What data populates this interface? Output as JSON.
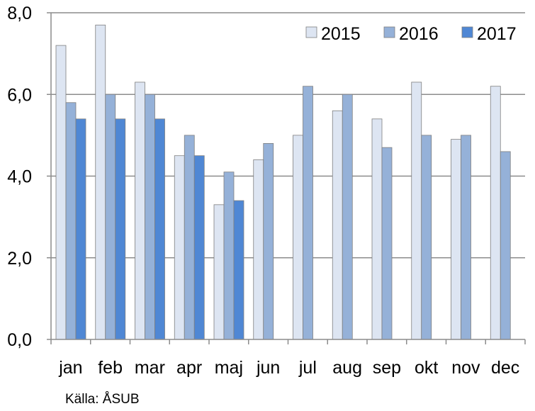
{
  "chart_data": {
    "type": "bar",
    "categories": [
      "jan",
      "feb",
      "mar",
      "apr",
      "maj",
      "jun",
      "jul",
      "aug",
      "sep",
      "okt",
      "nov",
      "dec"
    ],
    "series": [
      {
        "name": "2015",
        "color": "#dde5f2",
        "values": [
          7.2,
          7.7,
          6.3,
          4.5,
          3.3,
          4.4,
          5.0,
          5.6,
          5.4,
          6.3,
          4.9,
          6.2
        ]
      },
      {
        "name": "2016",
        "color": "#95b1d8",
        "values": [
          5.8,
          6.0,
          6.0,
          5.0,
          4.1,
          4.8,
          6.2,
          6.0,
          4.7,
          5.0,
          5.0,
          4.6
        ]
      },
      {
        "name": "2017",
        "color": "#4f87d4",
        "values": [
          5.4,
          5.4,
          5.4,
          4.5,
          3.4,
          null,
          null,
          null,
          null,
          null,
          null,
          null
        ]
      }
    ],
    "yticks": [
      "0,0",
      "2,0",
      "4,0",
      "6,0",
      "8,0"
    ],
    "ylim": [
      0,
      8
    ],
    "grid": true,
    "legend_position": "top-right"
  },
  "source_label": "Källa: ÅSUB"
}
